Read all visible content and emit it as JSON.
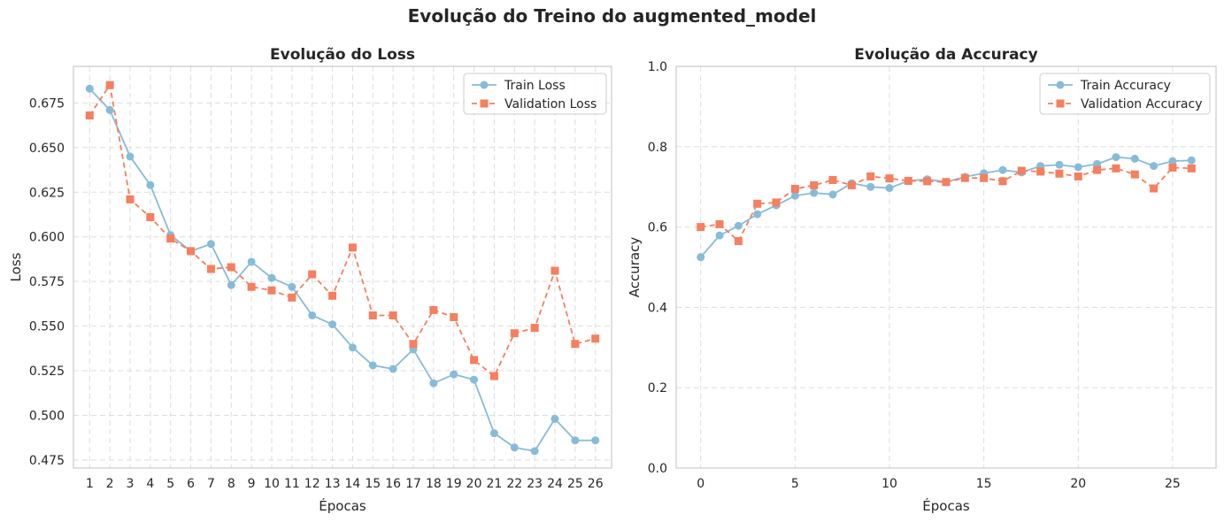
{
  "suptitle": "Evolução do Treino do augmented_model",
  "colors": {
    "train": "#87BCD9",
    "val": "#F57F5E",
    "grid": "#DDDDDD",
    "spine": "#CCCCCC",
    "text": "#262626"
  },
  "chart_data": [
    {
      "type": "line",
      "title": "Evolução do Loss",
      "xlabel": "Épocas",
      "ylabel": "Loss",
      "grid": true,
      "legend_position": "top-right",
      "x": [
        1,
        2,
        3,
        4,
        5,
        6,
        7,
        8,
        9,
        10,
        11,
        12,
        13,
        14,
        15,
        16,
        17,
        18,
        19,
        20,
        21,
        22,
        23,
        24,
        25,
        26
      ],
      "xticks": [
        1,
        2,
        3,
        4,
        5,
        6,
        7,
        8,
        9,
        10,
        11,
        12,
        13,
        14,
        15,
        16,
        17,
        18,
        19,
        20,
        21,
        22,
        23,
        24,
        25,
        26
      ],
      "yticks": [
        "0.475",
        "0.500",
        "0.525",
        "0.550",
        "0.575",
        "0.600",
        "0.625",
        "0.650",
        "0.675"
      ],
      "xlim": [
        0.2,
        26.8
      ],
      "ylim": [
        0.4705,
        0.6955
      ],
      "series": [
        {
          "name": "Train Loss",
          "color_key": "train",
          "dash": false,
          "marker": "circle",
          "values": [
            0.683,
            0.671,
            0.645,
            0.629,
            0.601,
            0.592,
            0.596,
            0.573,
            0.586,
            0.577,
            0.572,
            0.556,
            0.551,
            0.538,
            0.528,
            0.526,
            0.537,
            0.518,
            0.523,
            0.52,
            0.49,
            0.482,
            0.48,
            0.498,
            0.486,
            0.486
          ]
        },
        {
          "name": "Validation Loss",
          "color_key": "val",
          "dash": true,
          "marker": "square",
          "values": [
            0.668,
            0.685,
            0.621,
            0.611,
            0.599,
            0.592,
            0.582,
            0.583,
            0.572,
            0.57,
            0.566,
            0.579,
            0.567,
            0.594,
            0.556,
            0.556,
            0.54,
            0.559,
            0.555,
            0.531,
            0.522,
            0.546,
            0.549,
            0.581,
            0.54,
            0.543
          ]
        }
      ]
    },
    {
      "type": "line",
      "title": "Evolução da Accuracy",
      "xlabel": "Épocas",
      "ylabel": "Accuracy",
      "grid": true,
      "legend_position": "top-right",
      "x": [
        0,
        1,
        2,
        3,
        4,
        5,
        6,
        7,
        8,
        9,
        10,
        11,
        12,
        13,
        14,
        15,
        16,
        17,
        18,
        19,
        20,
        21,
        22,
        23,
        24,
        25,
        26
      ],
      "xticks": [
        0,
        5,
        10,
        15,
        20,
        25
      ],
      "yticks": [
        "0.0",
        "0.2",
        "0.4",
        "0.6",
        "0.8",
        "1.0"
      ],
      "xlim": [
        -1.3,
        27.3
      ],
      "ylim": [
        0.0,
        1.0
      ],
      "series": [
        {
          "name": "Train Accuracy",
          "color_key": "train",
          "dash": false,
          "marker": "circle",
          "values": [
            0.525,
            0.579,
            0.603,
            0.632,
            0.654,
            0.678,
            0.685,
            0.681,
            0.709,
            0.7,
            0.697,
            0.715,
            0.719,
            0.712,
            0.725,
            0.734,
            0.742,
            0.736,
            0.752,
            0.755,
            0.749,
            0.757,
            0.774,
            0.77,
            0.752,
            0.764,
            0.766
          ]
        },
        {
          "name": "Validation Accuracy",
          "color_key": "val",
          "dash": true,
          "marker": "square",
          "values": [
            0.6,
            0.607,
            0.565,
            0.658,
            0.661,
            0.695,
            0.704,
            0.717,
            0.704,
            0.726,
            0.721,
            0.715,
            0.714,
            0.712,
            0.722,
            0.722,
            0.714,
            0.74,
            0.738,
            0.733,
            0.726,
            0.742,
            0.746,
            0.731,
            0.696,
            0.748,
            0.746
          ]
        }
      ]
    }
  ]
}
